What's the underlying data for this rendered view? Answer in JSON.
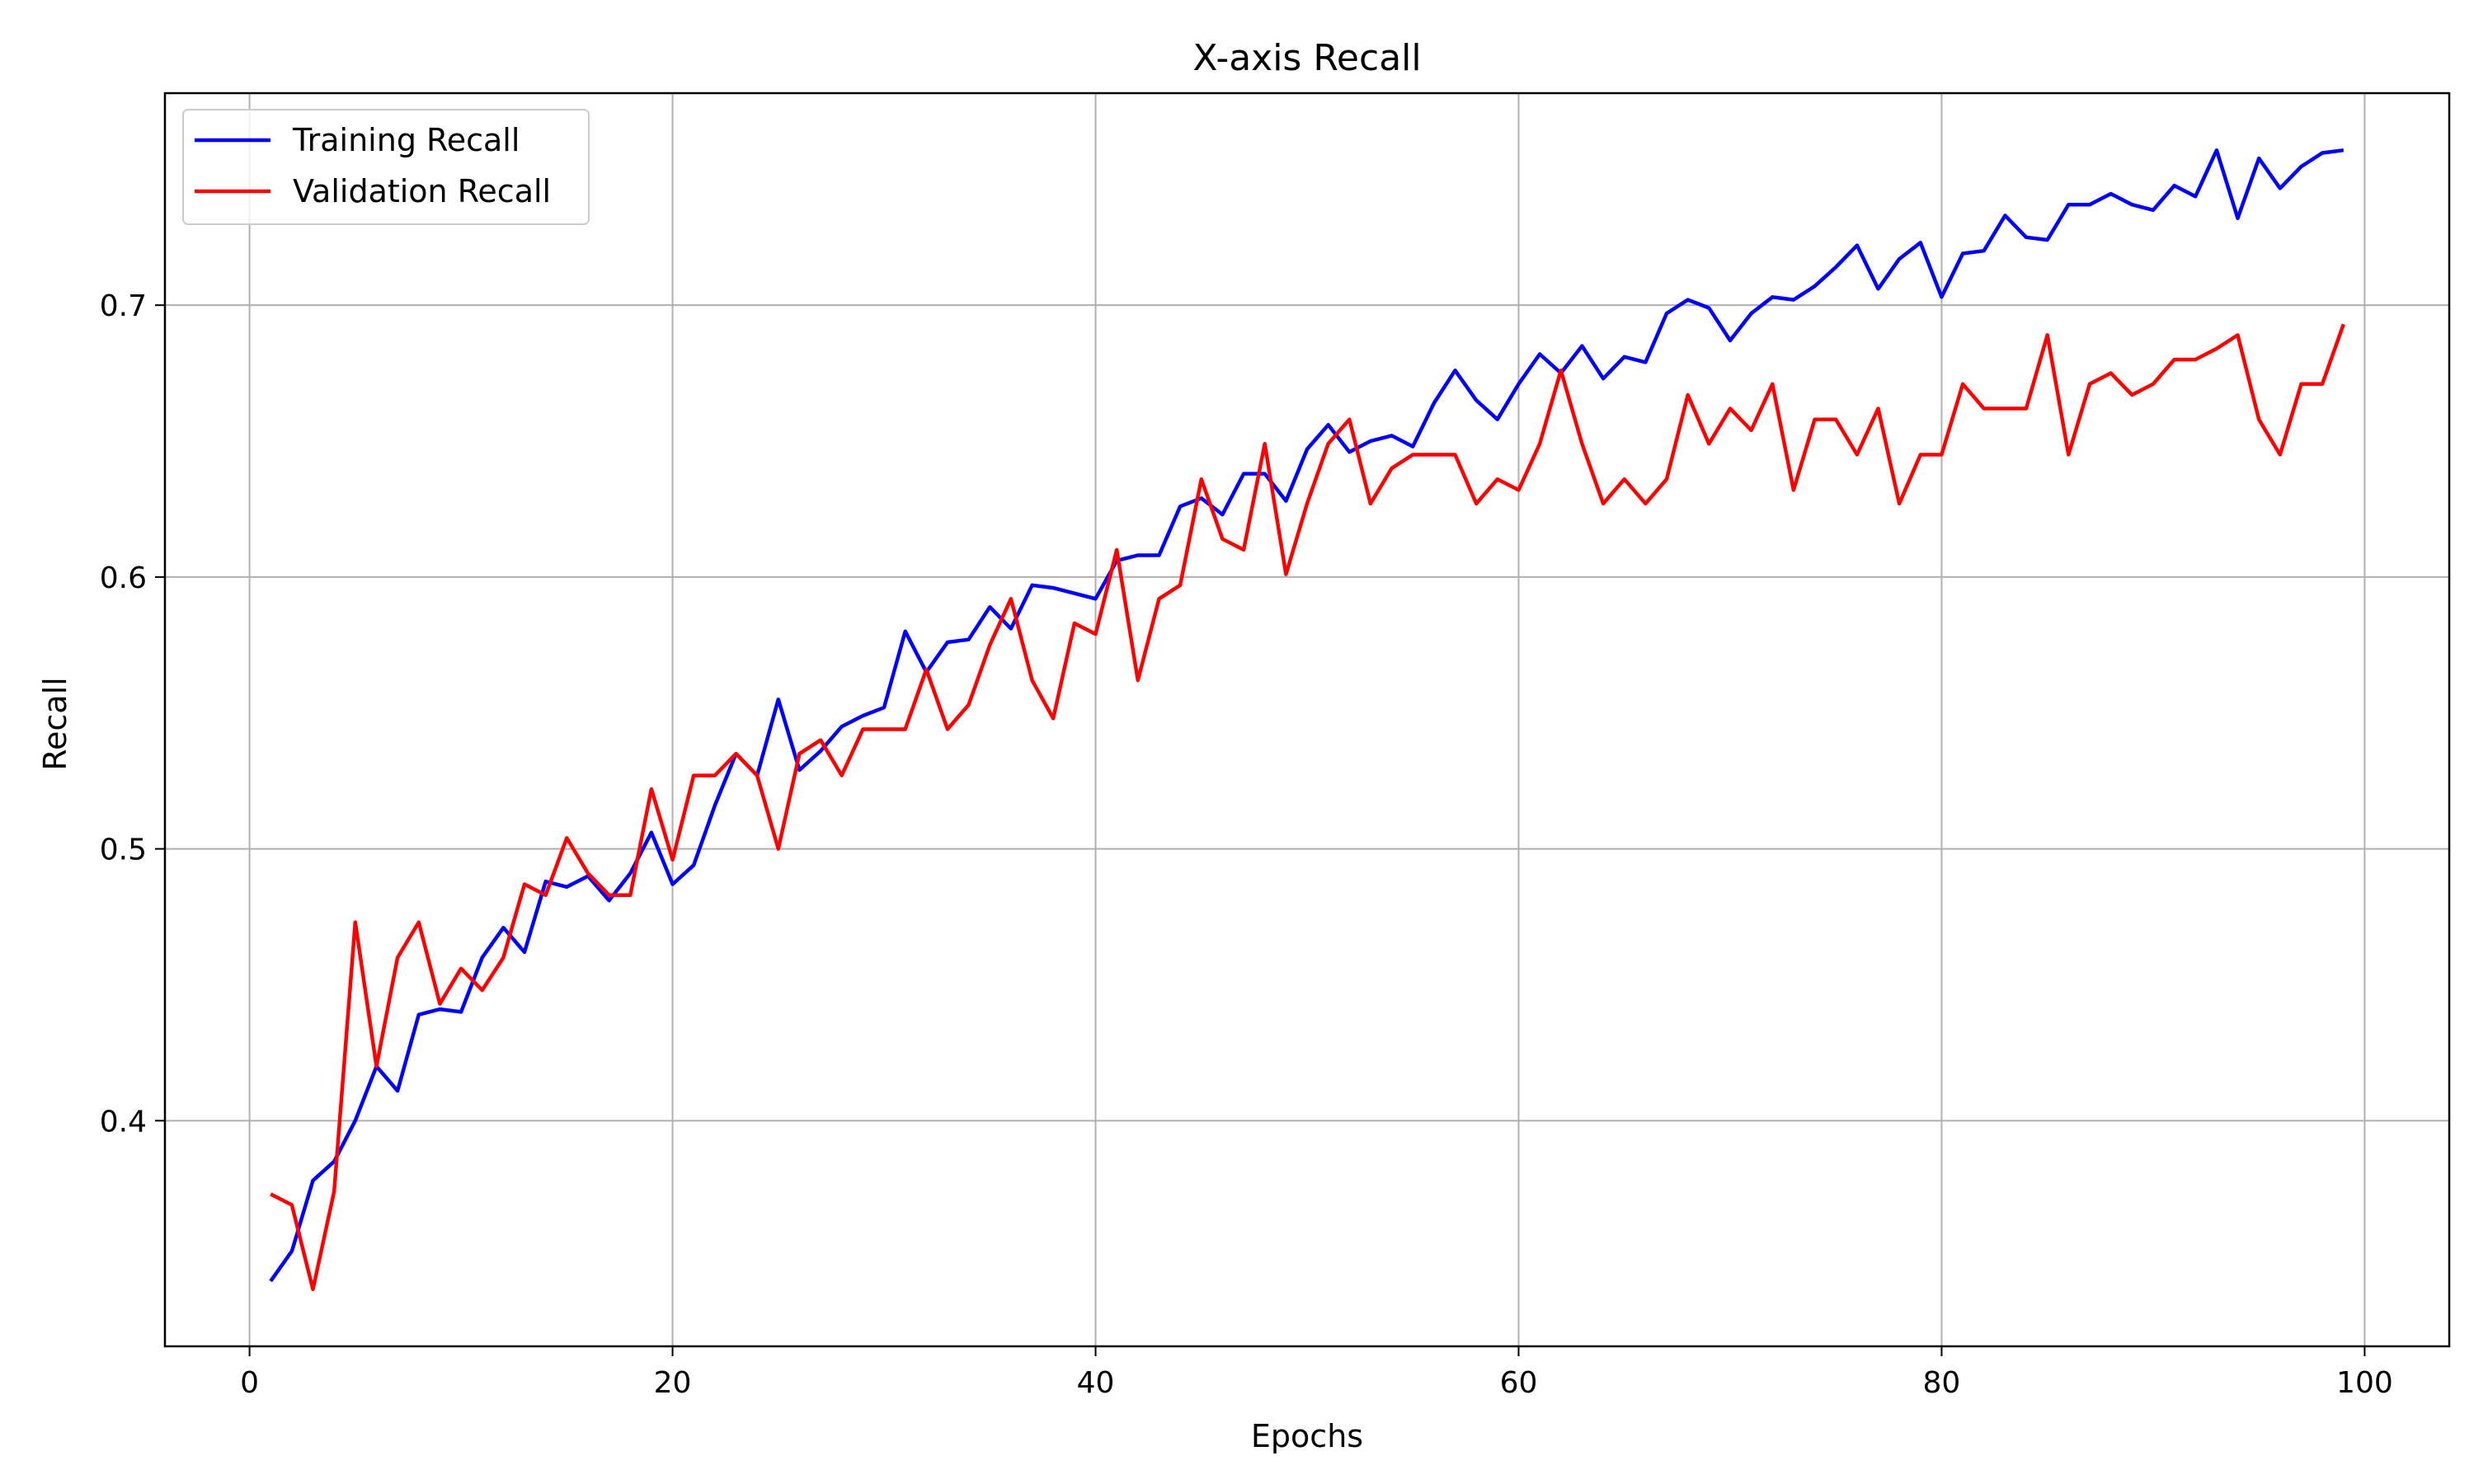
{
  "chart_data": {
    "type": "line",
    "title": "X-axis Recall",
    "xlabel": "Epochs",
    "ylabel": "Recall",
    "xlim": [
      -4,
      104
    ],
    "ylim": [
      0.317,
      0.778
    ],
    "xticks": [
      0,
      20,
      40,
      60,
      80,
      100
    ],
    "yticks": [
      0.4,
      0.5,
      0.6,
      0.7
    ],
    "grid": true,
    "legend_position": "top-left",
    "x": [
      1,
      2,
      3,
      4,
      5,
      6,
      7,
      8,
      9,
      10,
      11,
      12,
      13,
      14,
      15,
      16,
      17,
      18,
      19,
      20,
      21,
      22,
      23,
      24,
      25,
      26,
      27,
      28,
      29,
      30,
      31,
      32,
      33,
      34,
      35,
      36,
      37,
      38,
      39,
      40,
      41,
      42,
      43,
      44,
      45,
      46,
      47,
      48,
      49,
      50,
      51,
      52,
      53,
      54,
      55,
      56,
      57,
      58,
      59,
      60,
      61,
      62,
      63,
      64,
      65,
      66,
      67,
      68,
      69,
      70,
      71,
      72,
      73,
      74,
      75,
      76,
      77,
      78,
      79,
      80,
      81,
      82,
      83,
      84,
      85,
      86,
      87,
      88,
      89,
      90,
      91,
      92,
      93,
      94,
      95,
      96,
      97,
      98,
      99
    ],
    "series": [
      {
        "name": "Training Recall",
        "color": "#0000ff",
        "values": [
          0.341,
          0.352,
          0.378,
          0.385,
          0.4,
          0.42,
          0.411,
          0.439,
          0.441,
          0.44,
          0.46,
          0.471,
          0.462,
          0.488,
          0.486,
          0.49,
          0.481,
          0.491,
          0.506,
          0.487,
          0.494,
          0.516,
          0.535,
          0.527,
          0.555,
          0.529,
          0.536,
          0.545,
          0.549,
          0.552,
          0.58,
          0.565,
          0.576,
          0.577,
          0.589,
          0.581,
          0.597,
          0.596,
          0.594,
          0.592,
          0.606,
          0.608,
          0.608,
          0.626,
          0.629,
          0.623,
          0.638,
          0.638,
          0.628,
          0.647,
          0.656,
          0.646,
          0.65,
          0.652,
          0.648,
          0.664,
          0.676,
          0.665,
          0.658,
          0.671,
          0.682,
          0.675,
          0.685,
          0.673,
          0.681,
          0.679,
          0.697,
          0.702,
          0.699,
          0.687,
          0.697,
          0.703,
          0.702,
          0.707,
          0.714,
          0.722,
          0.706,
          0.717,
          0.723,
          0.703,
          0.719,
          0.72,
          0.733,
          0.725,
          0.724,
          0.737,
          0.737,
          0.741,
          0.737,
          0.735,
          0.744,
          0.74,
          0.757,
          0.732,
          0.754,
          0.743,
          0.751,
          0.756,
          0.757
        ]
      },
      {
        "name": "Validation Recall",
        "color": "#ff0000",
        "values": [
          0.373,
          0.369,
          0.338,
          0.374,
          0.473,
          0.42,
          0.46,
          0.473,
          0.443,
          0.456,
          0.448,
          0.46,
          0.487,
          0.483,
          0.504,
          0.491,
          0.483,
          0.483,
          0.522,
          0.496,
          0.527,
          0.527,
          0.535,
          0.527,
          0.5,
          0.535,
          0.54,
          0.527,
          0.544,
          0.544,
          0.544,
          0.566,
          0.544,
          0.553,
          0.575,
          0.592,
          0.562,
          0.548,
          0.583,
          0.579,
          0.61,
          0.562,
          0.592,
          0.597,
          0.636,
          0.614,
          0.61,
          0.649,
          0.601,
          0.627,
          0.649,
          0.658,
          0.627,
          0.64,
          0.645,
          0.645,
          0.645,
          0.627,
          0.636,
          0.632,
          0.649,
          0.676,
          0.649,
          0.627,
          0.636,
          0.627,
          0.636,
          0.667,
          0.649,
          0.662,
          0.654,
          0.671,
          0.632,
          0.658,
          0.658,
          0.645,
          0.662,
          0.627,
          0.645,
          0.645,
          0.671,
          0.662,
          0.662,
          0.662,
          0.689,
          0.645,
          0.671,
          0.675,
          0.667,
          0.671,
          0.68,
          0.68,
          0.684,
          0.689,
          0.658,
          0.645,
          0.671,
          0.671,
          0.693
        ]
      }
    ]
  }
}
